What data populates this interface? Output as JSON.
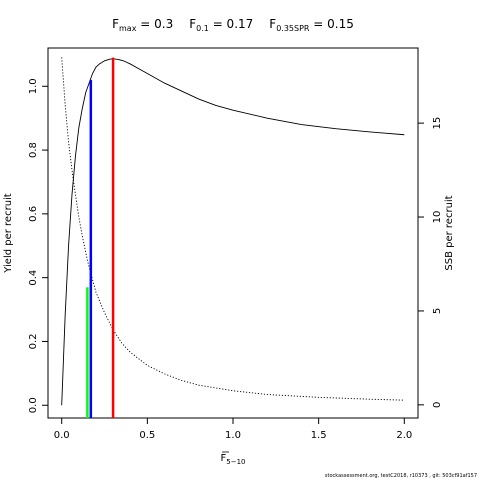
{
  "chart_data": {
    "type": "line",
    "title_parts": [
      {
        "main": "F",
        "sub": "max",
        "value": " = 0.3"
      },
      {
        "main": "F",
        "sub": "0.1",
        "value": " = 0.17"
      },
      {
        "main": "F",
        "sub": "0.35SPR",
        "value": " = 0.15"
      }
    ],
    "xlabel": {
      "main": "F",
      "sub": "5−10",
      "overline": true
    },
    "ylabel_left": "Yield per recruit",
    "ylabel_right": "SSB per recruit",
    "xlim": [
      -0.08,
      2.08
    ],
    "ylim_left": [
      -0.04,
      1.12
    ],
    "ylim_right": [
      -0.7,
      19.0
    ],
    "x_ticks": [
      0,
      0.5,
      1,
      1.5,
      2
    ],
    "x_tick_labels": [
      "0.0",
      "0.5",
      "1.0",
      "1.5",
      "2.0"
    ],
    "y_left_ticks": [
      0,
      0.2,
      0.4,
      0.6,
      0.8,
      1.0
    ],
    "y_left_tick_labels": [
      "0.0",
      "0.2",
      "0.4",
      "0.6",
      "0.8",
      "1.0"
    ],
    "y_right_ticks": [
      0,
      5,
      10,
      15
    ],
    "y_right_tick_labels": [
      "0",
      "5",
      "10",
      "15"
    ],
    "series": [
      {
        "axis": "left",
        "style": "solid",
        "color": "#000000",
        "x": [
          0,
          0.02,
          0.04,
          0.06,
          0.08,
          0.1,
          0.12,
          0.14,
          0.16,
          0.18,
          0.2,
          0.22,
          0.25,
          0.28,
          0.3,
          0.33,
          0.36,
          0.4,
          0.45,
          0.5,
          0.6,
          0.7,
          0.8,
          0.9,
          1.0,
          1.2,
          1.4,
          1.6,
          1.8,
          2.0
        ],
        "y": [
          0,
          0.28,
          0.5,
          0.66,
          0.78,
          0.87,
          0.93,
          0.98,
          1.01,
          1.04,
          1.06,
          1.07,
          1.08,
          1.085,
          1.086,
          1.084,
          1.08,
          1.07,
          1.055,
          1.04,
          1.01,
          0.985,
          0.96,
          0.94,
          0.925,
          0.9,
          0.88,
          0.867,
          0.857,
          0.848
        ]
      },
      {
        "axis": "right",
        "style": "dotted",
        "color": "#000000",
        "x": [
          0,
          0.02,
          0.04,
          0.06,
          0.08,
          0.1,
          0.12,
          0.15,
          0.17,
          0.2,
          0.25,
          0.3,
          0.35,
          0.4,
          0.5,
          0.6,
          0.7,
          0.8,
          1.0,
          1.2,
          1.5,
          1.8,
          2.0
        ],
        "y": [
          18.5,
          16.0,
          14.0,
          12.5,
          11.2,
          10.0,
          9.0,
          7.7,
          7.0,
          6.0,
          4.9,
          4.0,
          3.3,
          2.8,
          2.1,
          1.65,
          1.3,
          1.05,
          0.75,
          0.55,
          0.4,
          0.3,
          0.25
        ]
      }
    ],
    "reference_lines": [
      {
        "name": "F0.35SPR",
        "x": 0.15,
        "y": 0.37,
        "color": "#00ff00"
      },
      {
        "name": "F0.1",
        "x": 0.17,
        "y": 1.02,
        "color": "#0000ff"
      },
      {
        "name": "Fmax",
        "x": 0.3,
        "y": 1.09,
        "color": "#ff0000"
      }
    ],
    "grid": false,
    "footer": "stockassessment.org, testC2018, r10373 , git: 503cf91af157"
  }
}
